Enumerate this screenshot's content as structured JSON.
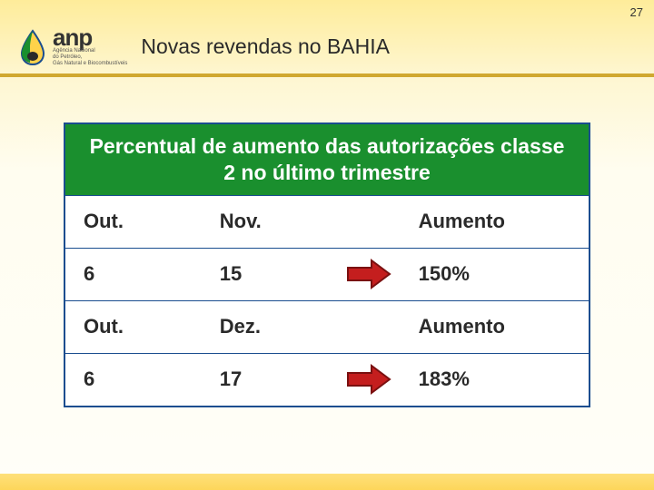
{
  "page_number": "27",
  "logo": {
    "text": "anp",
    "sub1": "Agência Nacional",
    "sub2": "do Petróleo,",
    "sub3": "Gás Natural e Biocombustíveis"
  },
  "title": "Novas revendas no BAHIA",
  "table": {
    "header": "Percentual de aumento das autorizações classe 2  no último trimestre",
    "rows": [
      {
        "c1": "Out.",
        "c2": "Nov.",
        "c3": "Aumento",
        "arrow": false
      },
      {
        "c1": "6",
        "c2": "15",
        "c3": "150%",
        "arrow": true
      },
      {
        "c1": "Out.",
        "c2": "Dez.",
        "c3": "Aumento",
        "arrow": false
      },
      {
        "c1": "6",
        "c2": "17",
        "c3": "183%",
        "arrow": true
      }
    ]
  },
  "colors": {
    "header_bg": "#1a8f2e",
    "border": "#1a4d8f",
    "arrow_fill": "#c41e1e",
    "arrow_stroke": "#7a1010"
  }
}
